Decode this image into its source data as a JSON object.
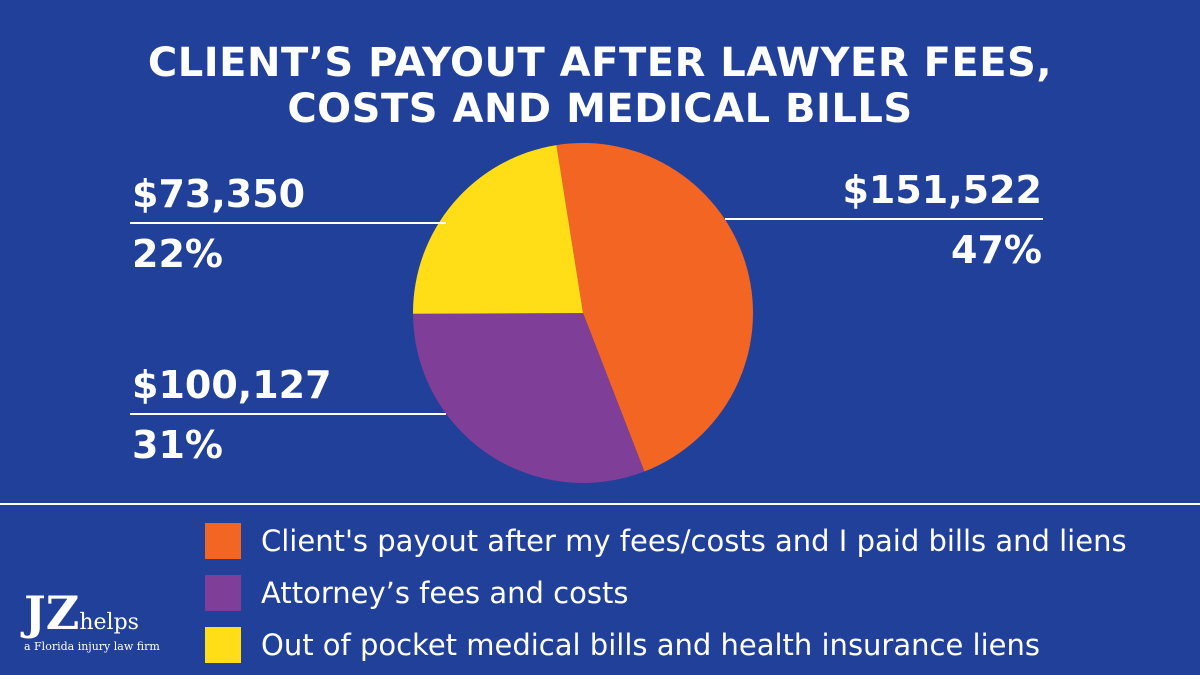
{
  "chart_data": {
    "type": "pie",
    "title": [
      "CLIENT’S PAYOUT AFTER LAWYER FEES,",
      "COSTS AND MEDICAL BILLS"
    ],
    "slices": [
      {
        "label": "Client's payout after my fees/costs and I paid bills and liens",
        "value": 151522,
        "value_label": "$151,522",
        "percent": 47,
        "percent_label": "47%",
        "color": "#f26522"
      },
      {
        "label": "Attorney’s fees and costs",
        "value": 100127,
        "value_label": "$100,127",
        "percent": 31,
        "percent_label": "31%",
        "color": "#7f3f98"
      },
      {
        "label": "Out of pocket medical bills and health insurance liens",
        "value": 73350,
        "value_label": "$73,350",
        "percent": 22,
        "percent_label": "22%",
        "color": "#ffde17"
      }
    ],
    "legend_position": "bottom"
  },
  "background": "#21409a",
  "logo": {
    "mark": "JZ",
    "word": "helps",
    "tagline": "a Florida injury law firm"
  }
}
